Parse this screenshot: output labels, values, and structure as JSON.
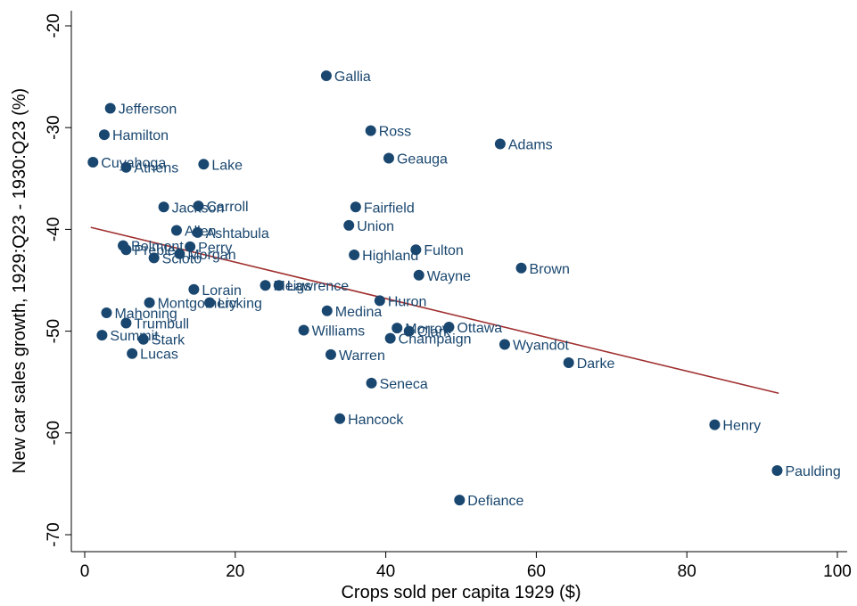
{
  "chart_data": {
    "type": "scatter",
    "xlabel": "Crops sold per capita 1929 ($)",
    "ylabel": "New car sales growth, 1929:Q23 - 1930:Q23 (%)",
    "xlim": [
      0,
      100
    ],
    "ylim": [
      -70,
      -20
    ],
    "xticks": [
      0,
      20,
      40,
      60,
      80,
      100
    ],
    "yticks": [
      -70,
      -60,
      -50,
      -40,
      -30,
      -20
    ],
    "grid": false,
    "colors": {
      "marker": "#1a476f",
      "fit_line": "#a03030"
    },
    "fit_line": {
      "x": [
        0.8,
        92.2
      ],
      "y": [
        -39.8,
        -56.1
      ]
    },
    "points": [
      {
        "label": "Gallia",
        "x": 32.1,
        "y": -24.9
      },
      {
        "label": "Jefferson",
        "x": 3.4,
        "y": -28.1
      },
      {
        "label": "Hamilton",
        "x": 2.6,
        "y": -30.7
      },
      {
        "label": "Ross",
        "x": 38.0,
        "y": -30.3
      },
      {
        "label": "Adams",
        "x": 55.2,
        "y": -31.6
      },
      {
        "label": "Geauga",
        "x": 40.4,
        "y": -33.0
      },
      {
        "label": "Cuyahoga",
        "x": 1.1,
        "y": -33.4
      },
      {
        "label": "Athens",
        "x": 5.5,
        "y": -33.9
      },
      {
        "label": "Lake",
        "x": 15.8,
        "y": -33.6
      },
      {
        "label": "Carroll",
        "x": 15.1,
        "y": -37.7
      },
      {
        "label": "Jackson",
        "x": 10.5,
        "y": -37.8
      },
      {
        "label": "Fairfield",
        "x": 36.0,
        "y": -37.8
      },
      {
        "label": "Union",
        "x": 35.1,
        "y": -39.6
      },
      {
        "label": "Allen",
        "x": 12.2,
        "y": -40.1
      },
      {
        "label": "Ashtabula",
        "x": 15.0,
        "y": -40.3
      },
      {
        "label": "Belmont",
        "x": 5.1,
        "y": -41.6
      },
      {
        "label": "Perry",
        "x": 14.0,
        "y": -41.7
      },
      {
        "label": "Preble",
        "x": 5.5,
        "y": -42.0
      },
      {
        "label": "Fulton",
        "x": 44.0,
        "y": -42.0
      },
      {
        "label": "Morgan",
        "x": 12.6,
        "y": -42.4
      },
      {
        "label": "Highland",
        "x": 35.8,
        "y": -42.5
      },
      {
        "label": "Scioto",
        "x": 9.2,
        "y": -42.8
      },
      {
        "label": "Brown",
        "x": 58.0,
        "y": -43.8
      },
      {
        "label": "Wayne",
        "x": 44.4,
        "y": -44.5
      },
      {
        "label": "Meigs",
        "x": 24.0,
        "y": -45.5
      },
      {
        "label": "Lawrence",
        "x": 25.8,
        "y": -45.5
      },
      {
        "label": "Lorain",
        "x": 14.5,
        "y": -45.9
      },
      {
        "label": "Huron",
        "x": 39.2,
        "y": -47.0
      },
      {
        "label": "Montgomery",
        "x": 8.6,
        "y": -47.2
      },
      {
        "label": "Licking",
        "x": 16.6,
        "y": -47.2
      },
      {
        "label": "Mahoning",
        "x": 2.9,
        "y": -48.2
      },
      {
        "label": "Medina",
        "x": 32.2,
        "y": -48.0
      },
      {
        "label": "Trumbull",
        "x": 5.5,
        "y": -49.2
      },
      {
        "label": "Morrow",
        "x": 41.5,
        "y": -49.7
      },
      {
        "label": "Ottawa",
        "x": 48.4,
        "y": -49.6
      },
      {
        "label": "Clark",
        "x": 43.1,
        "y": -50.0
      },
      {
        "label": "Williams",
        "x": 29.1,
        "y": -49.9
      },
      {
        "label": "Summit",
        "x": 2.3,
        "y": -50.4
      },
      {
        "label": "Champaign",
        "x": 40.6,
        "y": -50.7
      },
      {
        "label": "Stark",
        "x": 7.8,
        "y": -50.8
      },
      {
        "label": "Wyandot",
        "x": 55.8,
        "y": -51.3
      },
      {
        "label": "Lucas",
        "x": 6.3,
        "y": -52.2
      },
      {
        "label": "Warren",
        "x": 32.7,
        "y": -52.3
      },
      {
        "label": "Darke",
        "x": 64.3,
        "y": -53.1
      },
      {
        "label": "Seneca",
        "x": 38.1,
        "y": -55.1
      },
      {
        "label": "Hancock",
        "x": 33.9,
        "y": -58.6
      },
      {
        "label": "Henry",
        "x": 83.7,
        "y": -59.2
      },
      {
        "label": "Paulding",
        "x": 92.0,
        "y": -63.7
      },
      {
        "label": "Defiance",
        "x": 49.8,
        "y": -66.6
      }
    ]
  }
}
